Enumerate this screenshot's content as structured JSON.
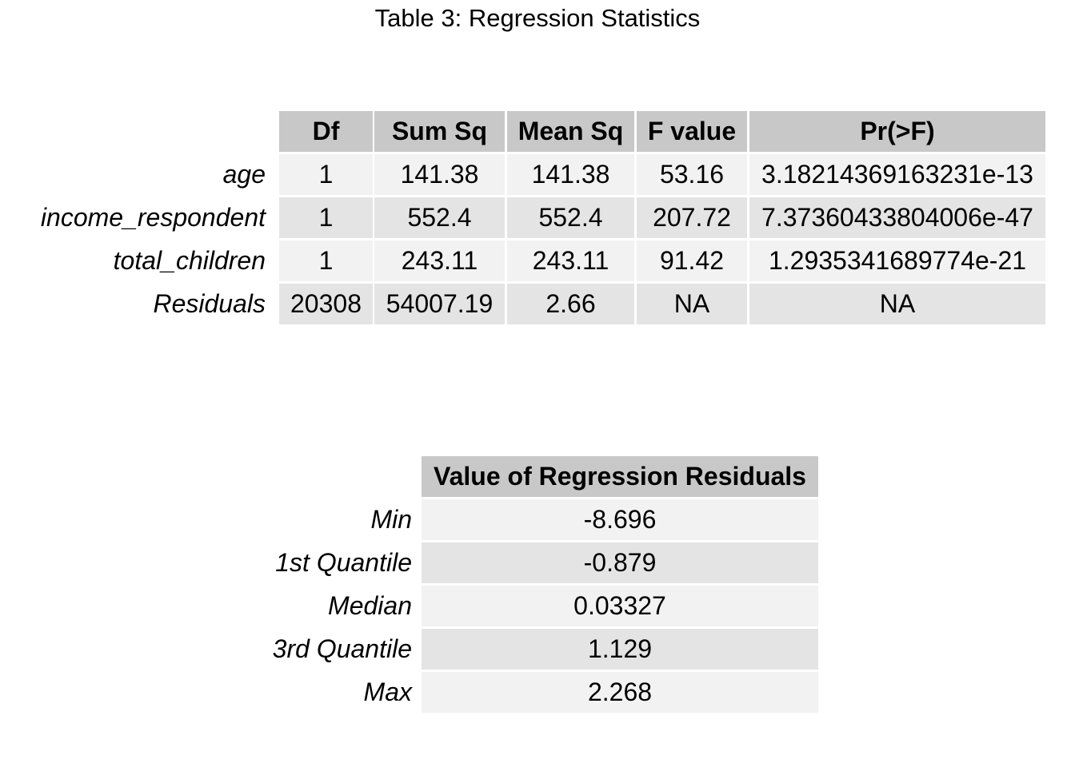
{
  "title": "Table 3: Regression Statistics",
  "anova_table": {
    "columns": [
      "Df",
      "Sum Sq",
      "Mean Sq",
      "F value",
      "Pr(>F)"
    ],
    "rows": [
      {
        "label": "age",
        "cells": [
          "1",
          "141.38",
          "141.38",
          "53.16",
          "3.18214369163231e-13"
        ]
      },
      {
        "label": "income_respondent",
        "cells": [
          "1",
          "552.4",
          "552.4",
          "207.72",
          "7.37360433804006e-47"
        ]
      },
      {
        "label": "total_children",
        "cells": [
          "1",
          "243.11",
          "243.11",
          "91.42",
          "1.2935341689774e-21"
        ]
      },
      {
        "label": "Residuals",
        "cells": [
          "20308",
          "54007.19",
          "2.66",
          "NA",
          "NA"
        ]
      }
    ]
  },
  "residuals_table": {
    "column": "Value of Regression Residuals",
    "rows": [
      {
        "label": "Min",
        "value": "-8.696"
      },
      {
        "label": "1st Quantile",
        "value": "-0.879"
      },
      {
        "label": "Median",
        "value": "0.03327"
      },
      {
        "label": "3rd Quantile",
        "value": "1.129"
      },
      {
        "label": "Max",
        "value": "2.268"
      }
    ]
  },
  "colors": {
    "header": "#c8c8c8",
    "row_light": "#f2f2f2",
    "row_dark": "#e4e4e4"
  },
  "chart_data": [
    {
      "type": "table",
      "title": "Table 3: Regression Statistics",
      "columns": [
        "Df",
        "Sum Sq",
        "Mean Sq",
        "F value",
        "Pr(>F)"
      ],
      "row_labels": [
        "age",
        "income_respondent",
        "total_children",
        "Residuals"
      ],
      "values": [
        [
          "1",
          "141.38",
          "141.38",
          "53.16",
          "3.18214369163231e-13"
        ],
        [
          "1",
          "552.4",
          "552.4",
          "207.72",
          "7.37360433804006e-47"
        ],
        [
          "1",
          "243.11",
          "243.11",
          "91.42",
          "1.2935341689774e-21"
        ],
        [
          "20308",
          "54007.19",
          "2.66",
          "NA",
          "NA"
        ]
      ]
    },
    {
      "type": "table",
      "columns": [
        "Value of Regression Residuals"
      ],
      "row_labels": [
        "Min",
        "1st Quantile",
        "Median",
        "3rd Quantile",
        "Max"
      ],
      "values": [
        [
          "-8.696"
        ],
        [
          "-0.879"
        ],
        [
          "0.03327"
        ],
        [
          "1.129"
        ],
        [
          "2.268"
        ]
      ]
    }
  ]
}
